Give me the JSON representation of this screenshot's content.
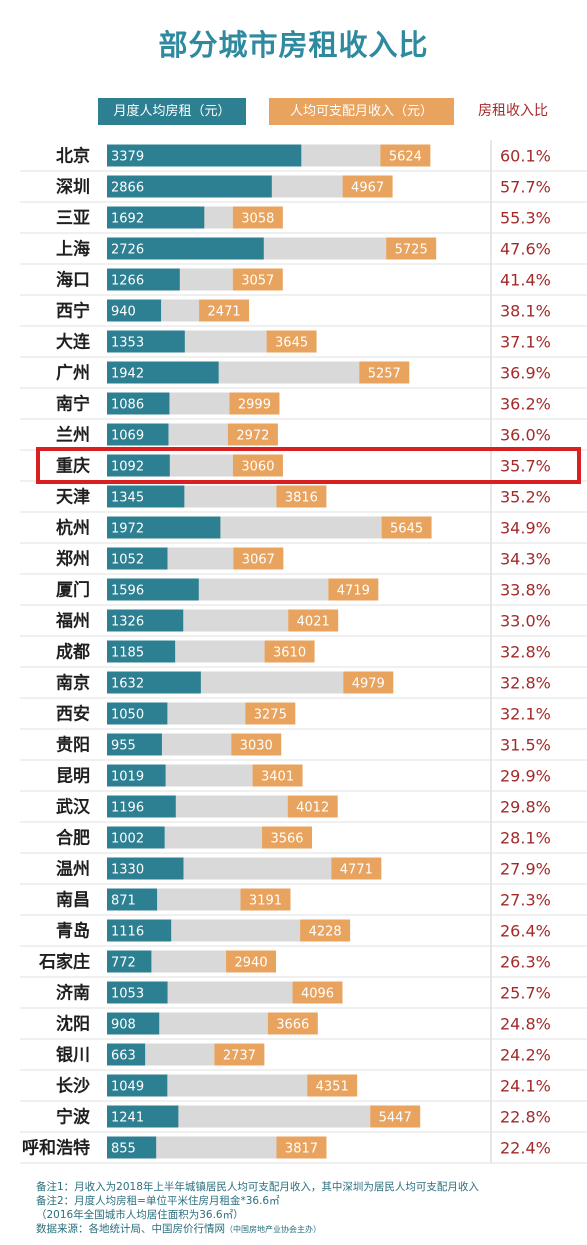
{
  "title": "部分城市房租收入比",
  "legend": {
    "rent": "月度人均房租（元）",
    "income": "人均可支配月收入（元）",
    "ratio": "房租收入比"
  },
  "colors": {
    "rent": "#2d7f92",
    "income": "#e8a35e",
    "track": "#d9d9d9",
    "ratio": "#a42a2a",
    "highlight": "#d91f1f"
  },
  "highlight_city": "重庆",
  "chart_data": {
    "type": "bar",
    "categories": [
      "北京",
      "深圳",
      "三亚",
      "上海",
      "海口",
      "西宁",
      "大连",
      "广州",
      "南宁",
      "兰州",
      "重庆",
      "天津",
      "杭州",
      "郑州",
      "厦门",
      "福州",
      "成都",
      "南京",
      "西安",
      "贵阳",
      "昆明",
      "武汉",
      "合肥",
      "温州",
      "南昌",
      "青岛",
      "石家庄",
      "济南",
      "沈阳",
      "银川",
      "长沙",
      "宁波",
      "呼和浩特"
    ],
    "series": [
      {
        "name": "月度人均房租（元）",
        "values": [
          3379,
          2866,
          1692,
          2726,
          1266,
          940,
          1353,
          1942,
          1086,
          1069,
          1092,
          1345,
          1972,
          1052,
          1596,
          1326,
          1185,
          1632,
          1050,
          955,
          1019,
          1196,
          1002,
          1330,
          871,
          1116,
          772,
          1053,
          908,
          663,
          1049,
          1241,
          855
        ]
      },
      {
        "name": "人均可支配月收入（元）",
        "values": [
          5624,
          4967,
          3058,
          5725,
          3057,
          2471,
          3645,
          5257,
          2999,
          2972,
          3060,
          3816,
          5645,
          3067,
          4719,
          4021,
          3610,
          4979,
          3275,
          3030,
          3401,
          4012,
          3566,
          4771,
          3191,
          4228,
          2940,
          4096,
          3666,
          2737,
          4351,
          5447,
          3817
        ]
      }
    ],
    "ratio_label": "房租收入比",
    "ratios": [
      "60.1%",
      "57.7%",
      "55.3%",
      "47.6%",
      "41.4%",
      "38.1%",
      "37.1%",
      "36.9%",
      "36.2%",
      "36.0%",
      "35.7%",
      "35.2%",
      "34.9%",
      "34.3%",
      "33.8%",
      "33.0%",
      "32.8%",
      "32.8%",
      "32.1%",
      "31.5%",
      "29.9%",
      "29.8%",
      "28.1%",
      "27.9%",
      "27.3%",
      "26.4%",
      "26.3%",
      "25.7%",
      "24.8%",
      "24.2%",
      "24.1%",
      "22.8%",
      "22.4%"
    ],
    "grid": false
  },
  "notes": {
    "note1": "备注1：月收入为2018年上半年城镇居民人均可支配月收入，其中深圳为居民人均可支配月收入",
    "note2": "备注2：月度人均房租=单位平米住房月租金*36.6㎡",
    "note2b": "（2016年全国城市人均居住面积为36.6㎡）",
    "source": "数据来源：各地统计局、中国房价行情网",
    "source_org": "（中国房地产业协会主办）"
  }
}
